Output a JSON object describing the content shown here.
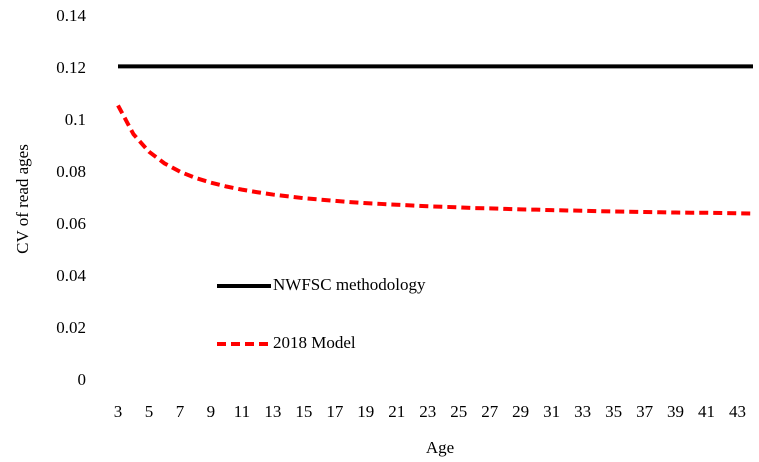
{
  "chart_data": {
    "type": "line",
    "x_label": "Age",
    "y_label": "CV of read ages",
    "x": [
      3,
      4,
      5,
      6,
      7,
      8,
      9,
      10,
      11,
      12,
      13,
      14,
      15,
      16,
      17,
      18,
      19,
      20,
      21,
      22,
      23,
      24,
      25,
      26,
      27,
      28,
      29,
      30,
      31,
      32,
      33,
      34,
      35,
      36,
      37,
      38,
      39,
      40,
      41,
      42,
      43,
      44
    ],
    "series": [
      {
        "name": "NWFSC methodology",
        "color": "#000000",
        "dash": "solid",
        "values": [
          0.121,
          0.121,
          0.121,
          0.121,
          0.121,
          0.121,
          0.121,
          0.121,
          0.121,
          0.121,
          0.121,
          0.121,
          0.121,
          0.121,
          0.121,
          0.121,
          0.121,
          0.121,
          0.121,
          0.121,
          0.121,
          0.121,
          0.121,
          0.121,
          0.121,
          0.121,
          0.121,
          0.121,
          0.121,
          0.121,
          0.121,
          0.121,
          0.121,
          0.121,
          0.121,
          0.121,
          0.121,
          0.121,
          0.121,
          0.121,
          0.121,
          0.121
        ]
      },
      {
        "name": "2018 Model",
        "color": "#ff0000",
        "dash": "dashed",
        "values": [
          0.106,
          0.0949,
          0.0882,
          0.0837,
          0.0805,
          0.0781,
          0.0763,
          0.0748,
          0.0736,
          0.0726,
          0.0717,
          0.071,
          0.0703,
          0.0698,
          0.0693,
          0.0688,
          0.0684,
          0.0681,
          0.0678,
          0.0675,
          0.0672,
          0.067,
          0.0668,
          0.0665,
          0.0664,
          0.0662,
          0.066,
          0.0659,
          0.0657,
          0.0656,
          0.0655,
          0.0653,
          0.0652,
          0.0651,
          0.065,
          0.0649,
          0.0648,
          0.0647,
          0.0647,
          0.0646,
          0.0645,
          0.0644
        ]
      }
    ],
    "xlim": [
      3,
      44
    ],
    "xticks": [
      3,
      5,
      7,
      9,
      11,
      13,
      15,
      17,
      19,
      21,
      23,
      25,
      27,
      29,
      31,
      33,
      35,
      37,
      39,
      41,
      43
    ],
    "ylim": [
      0,
      0.14
    ],
    "yticks": [
      0,
      0.02,
      0.04,
      0.06,
      0.08,
      0.1,
      0.12,
      0.14
    ],
    "grid": false,
    "legend": "center-left"
  }
}
